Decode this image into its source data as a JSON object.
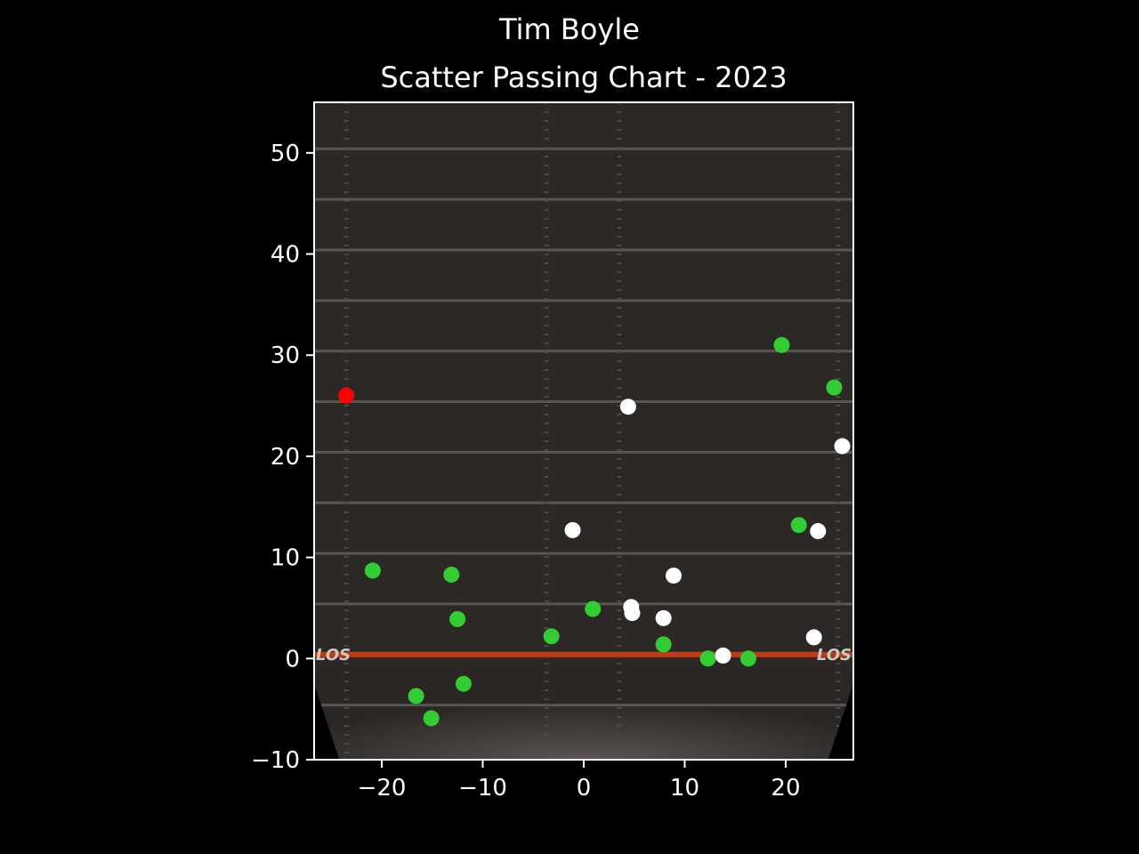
{
  "suptitle": "Tim Boyle",
  "chart_data": {
    "type": "scatter",
    "title": "Scatter Passing Chart - 2023",
    "xlabel": "",
    "ylabel": "",
    "xlim": [
      -26.7,
      26.7
    ],
    "ylim": [
      -10,
      55
    ],
    "xticks": [
      -20,
      -10,
      0,
      10,
      20
    ],
    "yticks": [
      -10,
      0,
      10,
      20,
      30,
      40,
      50
    ],
    "grid": false,
    "background": "football field image",
    "field_label": "LOS",
    "series": [
      {
        "color": "#32cd32",
        "points": [
          {
            "x": -20.9,
            "y": 8.7
          },
          {
            "x": -13.1,
            "y": 8.3
          },
          {
            "x": -12.5,
            "y": 3.9
          },
          {
            "x": -16.6,
            "y": -3.7
          },
          {
            "x": -15.1,
            "y": -5.9
          },
          {
            "x": -11.9,
            "y": -2.5
          },
          {
            "x": -3.2,
            "y": 2.2
          },
          {
            "x": 0.9,
            "y": 4.9
          },
          {
            "x": 7.9,
            "y": 1.4
          },
          {
            "x": 12.3,
            "y": 0.0
          },
          {
            "x": 16.3,
            "y": 0.0
          },
          {
            "x": 19.6,
            "y": 31.0
          },
          {
            "x": 24.8,
            "y": 26.8
          },
          {
            "x": 21.3,
            "y": 13.2
          }
        ]
      },
      {
        "color": "#ffffff",
        "points": [
          {
            "x": -1.1,
            "y": 12.7
          },
          {
            "x": 4.4,
            "y": 24.9
          },
          {
            "x": 4.7,
            "y": 5.1
          },
          {
            "x": 4.8,
            "y": 4.5
          },
          {
            "x": 7.9,
            "y": 4.0
          },
          {
            "x": 8.9,
            "y": 8.2
          },
          {
            "x": 13.8,
            "y": 0.3
          },
          {
            "x": 22.8,
            "y": 2.1
          },
          {
            "x": 23.2,
            "y": 12.6
          },
          {
            "x": 25.6,
            "y": 21.0
          }
        ]
      },
      {
        "color": "#ff0000",
        "points": [
          {
            "x": -23.5,
            "y": 26.0
          }
        ]
      }
    ]
  }
}
